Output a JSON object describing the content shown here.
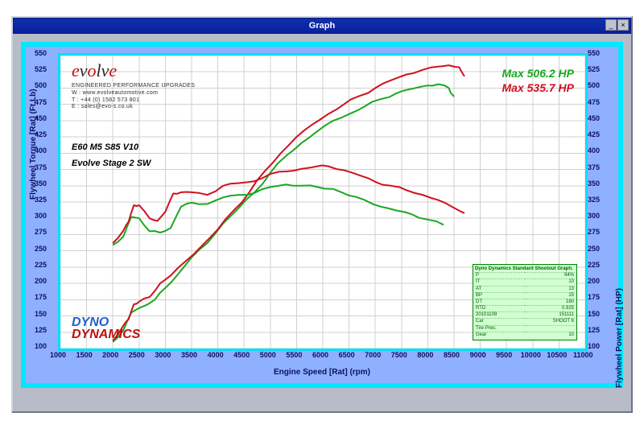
{
  "window": {
    "title": "Graph"
  },
  "chart": {
    "type": "line",
    "background_color": "#ffffff",
    "frame_color": "#00e0f8",
    "shell_background": "#8eb0ff",
    "grid_color": "#d0d0d0",
    "xaxis": {
      "label": "Engine Speed [Rat] (rpm)",
      "min": 1000,
      "max": 11000,
      "step": 500
    },
    "yaxis_left": {
      "label": "Flywheel Torque [Rat] (Ft.Lb)",
      "min": 100,
      "max": 550,
      "step": 25
    },
    "yaxis_right": {
      "label": "Flywheel Power [Rat] (HP)",
      "min": 100,
      "max": 550,
      "step": 25
    },
    "series": [
      {
        "name": "power_stock",
        "color": "#1aa820",
        "width": 2,
        "data": [
          [
            2000,
            110
          ],
          [
            2200,
            128
          ],
          [
            2350,
            155
          ],
          [
            2500,
            162
          ],
          [
            2800,
            175
          ],
          [
            3000,
            193
          ],
          [
            3250,
            215
          ],
          [
            3500,
            240
          ],
          [
            3800,
            262
          ],
          [
            4100,
            292
          ],
          [
            4400,
            316
          ],
          [
            4700,
            340
          ],
          [
            5000,
            370
          ],
          [
            5300,
            396
          ],
          [
            5600,
            416
          ],
          [
            5900,
            434
          ],
          [
            6200,
            450
          ],
          [
            6500,
            460
          ],
          [
            6800,
            472
          ],
          [
            7100,
            483
          ],
          [
            7400,
            492
          ],
          [
            7700,
            499
          ],
          [
            8000,
            504
          ],
          [
            8200,
            506
          ],
          [
            8400,
            500
          ],
          [
            8500,
            487
          ]
        ]
      },
      {
        "name": "power_tuned",
        "color": "#d01020",
        "width": 2,
        "data": [
          [
            2000,
            112
          ],
          [
            2200,
            135
          ],
          [
            2300,
            145
          ],
          [
            2400,
            168
          ],
          [
            2500,
            172
          ],
          [
            2700,
            179
          ],
          [
            2900,
            200
          ],
          [
            3100,
            212
          ],
          [
            3400,
            235
          ],
          [
            3700,
            258
          ],
          [
            4000,
            283
          ],
          [
            4300,
            312
          ],
          [
            4600,
            340
          ],
          [
            4900,
            373
          ],
          [
            5200,
            400
          ],
          [
            5500,
            425
          ],
          [
            5800,
            444
          ],
          [
            6100,
            460
          ],
          [
            6400,
            475
          ],
          [
            6700,
            488
          ],
          [
            7000,
            500
          ],
          [
            7300,
            512
          ],
          [
            7600,
            521
          ],
          [
            7900,
            528
          ],
          [
            8200,
            533
          ],
          [
            8400,
            535
          ],
          [
            8600,
            532
          ],
          [
            8700,
            518
          ]
        ]
      },
      {
        "name": "torque_stock",
        "color": "#1aa820",
        "width": 2,
        "data": [
          [
            2000,
            259
          ],
          [
            2200,
            272
          ],
          [
            2350,
            302
          ],
          [
            2500,
            300
          ],
          [
            2700,
            280
          ],
          [
            2900,
            278
          ],
          [
            3100,
            285
          ],
          [
            3300,
            318
          ],
          [
            3500,
            324
          ],
          [
            3800,
            322
          ],
          [
            4100,
            332
          ],
          [
            4400,
            336
          ],
          [
            4700,
            339
          ],
          [
            5000,
            348
          ],
          [
            5300,
            352
          ],
          [
            5600,
            350
          ],
          [
            5900,
            348
          ],
          [
            6200,
            345
          ],
          [
            6500,
            335
          ],
          [
            6800,
            328
          ],
          [
            7100,
            318
          ],
          [
            7400,
            312
          ],
          [
            7700,
            306
          ],
          [
            8000,
            298
          ],
          [
            8300,
            290
          ]
        ]
      },
      {
        "name": "torque_tuned",
        "color": "#d01020",
        "width": 2,
        "data": [
          [
            2000,
            262
          ],
          [
            2200,
            281
          ],
          [
            2300,
            295
          ],
          [
            2400,
            320
          ],
          [
            2500,
            320
          ],
          [
            2700,
            300
          ],
          [
            2850,
            296
          ],
          [
            3000,
            310
          ],
          [
            3150,
            338
          ],
          [
            3300,
            340
          ],
          [
            3500,
            340
          ],
          [
            3800,
            336
          ],
          [
            4100,
            350
          ],
          [
            4400,
            354
          ],
          [
            4700,
            357
          ],
          [
            5000,
            368
          ],
          [
            5300,
            372
          ],
          [
            5600,
            376
          ],
          [
            5900,
            380
          ],
          [
            6100,
            380
          ],
          [
            6400,
            374
          ],
          [
            6700,
            366
          ],
          [
            7000,
            356
          ],
          [
            7300,
            350
          ],
          [
            7600,
            343
          ],
          [
            7900,
            336
          ],
          [
            8200,
            328
          ],
          [
            8500,
            316
          ],
          [
            8700,
            308
          ]
        ]
      }
    ]
  },
  "labels": {
    "evolve_brand": "evolve",
    "evolve_tag": "ENGINEERED PERFORMANCE UPGRADES",
    "evolve_web": "W : www.evolveautomotive.com",
    "evolve_tel": "T : +44 (0) 1582 573 801",
    "evolve_email": "E : sales@evo-s.co.uk",
    "vehicle": "E60 M5 S85 V10",
    "tune": "Evolve Stage 2 SW",
    "max_hp_1": "Max 506.2 HP",
    "max_hp_2": "Max 535.7 HP",
    "dyno_1": "DYNO",
    "dyno_2": "DYNAMICS"
  },
  "colors": {
    "stock": "#1aa820",
    "tuned": "#d01020",
    "titlebar": "#1030a8"
  },
  "info_box": {
    "header": "Dyno Dynamics Standard Shootout Graph.",
    "rows": [
      [
        "P",
        "94%"
      ],
      [
        "IT",
        "10"
      ],
      [
        "AT",
        "13"
      ],
      [
        "BP",
        "15"
      ],
      [
        "DT",
        "180"
      ],
      [
        "RTD",
        "0.925"
      ],
      [
        "20101109",
        "151111"
      ],
      [
        "Car",
        "SHOOT 6"
      ],
      [
        "Tire Pres.",
        ""
      ],
      [
        "Gear",
        "10"
      ]
    ]
  }
}
